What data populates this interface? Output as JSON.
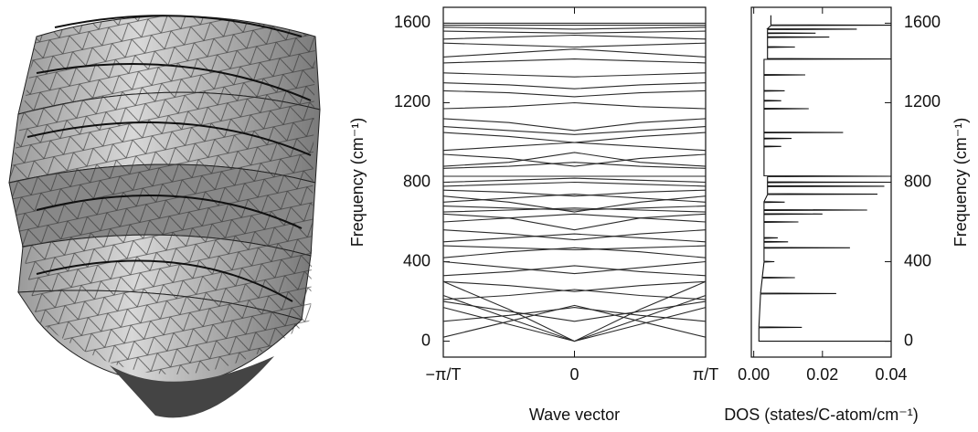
{
  "chart_data": [
    {
      "type": "line",
      "color": "#2a2a2a",
      "x": [
        -1,
        -0.5,
        0,
        0.5,
        1
      ],
      "xlim": [
        -1,
        1
      ],
      "xticks": [
        {
          "value": -1,
          "label": "−π/T"
        },
        0,
        {
          "value": 1,
          "label": "π/T"
        }
      ],
      "ylim": [
        -80,
        1680
      ],
      "yticks": [
        0,
        400,
        800,
        1200,
        1600
      ],
      "xlabel": "Wave vector",
      "ylabel": "Frequency (cm⁻¹)",
      "series": [
        {
          "values": [
            300,
            160,
            0,
            160,
            300
          ]
        },
        {
          "values": [
            170,
            85,
            0,
            85,
            170
          ]
        },
        {
          "values": [
            230,
            115,
            0,
            115,
            230
          ]
        },
        {
          "values": [
            20,
            100,
            180,
            100,
            20
          ]
        },
        {
          "values": [
            100,
            130,
            170,
            130,
            100
          ]
        },
        {
          "values": [
            200,
            150,
            100,
            150,
            200
          ]
        },
        {
          "values": [
            210,
            230,
            260,
            230,
            210
          ]
        },
        {
          "values": [
            300,
            280,
            250,
            280,
            300
          ]
        },
        {
          "values": [
            330,
            350,
            380,
            350,
            330
          ]
        },
        {
          "values": [
            400,
            370,
            340,
            370,
            400
          ]
        },
        {
          "values": [
            420,
            450,
            470,
            450,
            420
          ]
        },
        {
          "values": [
            480,
            470,
            460,
            470,
            480
          ]
        },
        {
          "values": [
            500,
            520,
            540,
            520,
            500
          ]
        },
        {
          "values": [
            560,
            540,
            510,
            540,
            560
          ]
        },
        {
          "values": [
            600,
            620,
            640,
            620,
            600
          ]
        },
        {
          "values": [
            650,
            660,
            670,
            660,
            650
          ]
        },
        {
          "values": [
            680,
            670,
            660,
            670,
            680
          ]
        },
        {
          "values": [
            700,
            720,
            740,
            720,
            700
          ]
        },
        {
          "values": [
            760,
            750,
            730,
            750,
            760
          ]
        },
        {
          "values": [
            780,
            790,
            800,
            790,
            780
          ]
        },
        {
          "values": [
            800,
            810,
            820,
            810,
            800
          ]
        },
        {
          "values": [
            830,
            830,
            830,
            830,
            830
          ]
        },
        {
          "values": [
            870,
            880,
            900,
            880,
            870
          ]
        },
        {
          "values": [
            940,
            920,
            880,
            920,
            940
          ]
        },
        {
          "values": [
            960,
            980,
            1000,
            980,
            960
          ]
        },
        {
          "values": [
            1050,
            1030,
            1000,
            1030,
            1050
          ]
        },
        {
          "values": [
            1080,
            1060,
            1040,
            1060,
            1080
          ]
        },
        {
          "values": [
            1120,
            1100,
            1060,
            1100,
            1120
          ]
        },
        {
          "values": [
            1170,
            1180,
            1200,
            1180,
            1170
          ]
        },
        {
          "values": [
            1260,
            1250,
            1230,
            1250,
            1260
          ]
        },
        {
          "values": [
            1300,
            1290,
            1270,
            1290,
            1300
          ]
        },
        {
          "values": [
            1350,
            1340,
            1330,
            1340,
            1350
          ]
        },
        {
          "values": [
            1400,
            1410,
            1420,
            1410,
            1400
          ]
        },
        {
          "values": [
            1430,
            1450,
            1470,
            1450,
            1430
          ]
        },
        {
          "values": [
            1500,
            1490,
            1480,
            1490,
            1500
          ]
        },
        {
          "values": [
            1520,
            1530,
            1540,
            1530,
            1520
          ]
        },
        {
          "values": [
            1560,
            1555,
            1550,
            1555,
            1560
          ]
        },
        {
          "values": [
            1580,
            1575,
            1570,
            1575,
            1580
          ]
        },
        {
          "values": [
            1590,
            1590,
            1590,
            1590,
            1590
          ]
        },
        {
          "values": [
            1600,
            1600,
            1600,
            1600,
            1600
          ]
        },
        {
          "values": [
            880,
            900,
            950,
            900,
            880
          ]
        },
        {
          "values": [
            640,
            620,
            560,
            620,
            640
          ]
        },
        {
          "values": [
            730,
            700,
            650,
            700,
            730
          ]
        }
      ]
    },
    {
      "type": "line",
      "orientation": "horizontal",
      "color": "#111",
      "xlim": [
        -0.0007,
        0.04
      ],
      "xticks": [
        {
          "value": 0,
          "label": "0.00"
        },
        0.02,
        0.04
      ],
      "ylim": [
        -80,
        1680
      ],
      "yticks": [
        0,
        400,
        800,
        1200,
        1600
      ],
      "xlabel": "DOS (states/C-atom/cm⁻¹)",
      "ylabel": "Frequency (cm⁻¹)",
      "x": [
        0,
        0,
        2,
        68,
        70,
        72,
        238,
        240,
        242,
        318,
        320,
        322,
        398,
        400,
        402,
        468,
        470,
        472,
        498,
        500,
        502,
        518,
        520,
        522,
        598,
        600,
        602,
        638,
        640,
        642,
        658,
        660,
        662,
        698,
        700,
        702,
        738,
        740,
        742,
        778,
        780,
        782,
        798,
        800,
        802,
        828,
        830,
        832,
        870,
        978,
        980,
        982,
        1018,
        1020,
        1022,
        1048,
        1050,
        1052,
        1168,
        1170,
        1172,
        1208,
        1210,
        1212,
        1258,
        1260,
        1262,
        1338,
        1340,
        1342,
        1418,
        1420,
        1422,
        1478,
        1480,
        1482,
        1528,
        1530,
        1532,
        1548,
        1550,
        1552,
        1568,
        1570,
        1572,
        1588,
        1590,
        1592,
        1640
      ],
      "values": [
        0.04,
        0.0015,
        0.0015,
        0.0015,
        0.014,
        0.0015,
        0.002,
        0.024,
        0.002,
        0.0025,
        0.012,
        0.0025,
        0.003,
        0.006,
        0.003,
        0.003,
        0.028,
        0.003,
        0.003,
        0.01,
        0.003,
        0.003,
        0.007,
        0.003,
        0.003,
        0.013,
        0.003,
        0.003,
        0.02,
        0.003,
        0.003,
        0.033,
        0.003,
        0.003,
        0.009,
        0.003,
        0.004,
        0.036,
        0.004,
        0.004,
        0.038,
        0.004,
        0.004,
        0.04,
        0.004,
        0.004,
        0.04,
        0.003,
        0.003,
        0.003,
        0.008,
        0.003,
        0.003,
        0.011,
        0.003,
        0.003,
        0.026,
        0.003,
        0.003,
        0.016,
        0.003,
        0.003,
        0.008,
        0.003,
        0.003,
        0.009,
        0.003,
        0.003,
        0.015,
        0.003,
        0.003,
        0.04,
        0.004,
        0.004,
        0.012,
        0.004,
        0.004,
        0.022,
        0.004,
        0.004,
        0.018,
        0.004,
        0.004,
        0.03,
        0.004,
        0.005,
        0.04,
        0.005,
        0.005
      ]
    }
  ]
}
